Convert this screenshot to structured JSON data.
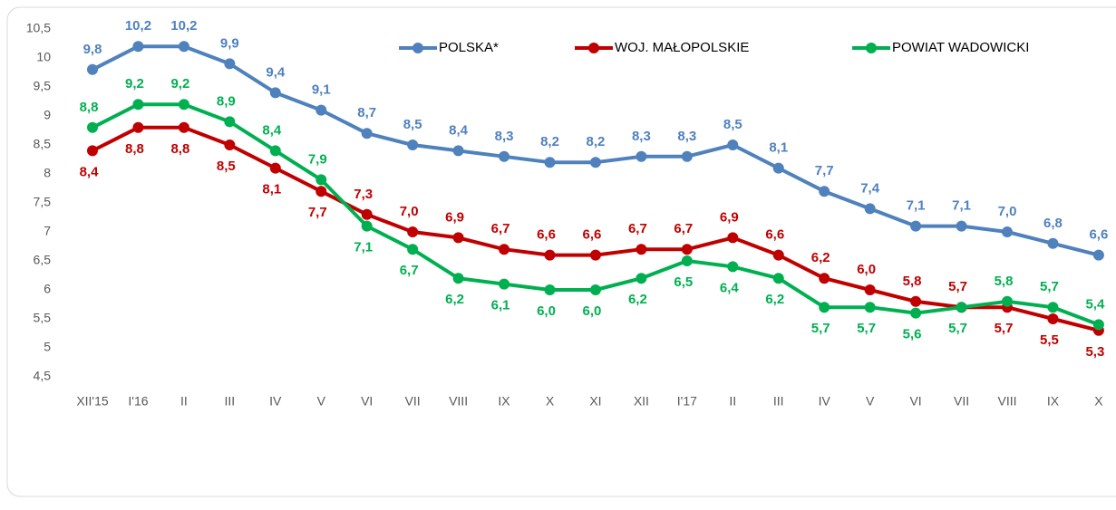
{
  "chart_data": {
    "type": "line",
    "categories": [
      "XII'15",
      "I'16",
      "II",
      "III",
      "IV",
      "V",
      "VI",
      "VII",
      "VIII",
      "IX",
      "X",
      "XI",
      "XII",
      "I'17",
      "II",
      "III",
      "IV",
      "V",
      "VI",
      "VII",
      "VIII",
      "IX",
      "X"
    ],
    "series": [
      {
        "name": "POLSKA*",
        "color": "#4f81bd",
        "values": [
          9.8,
          10.2,
          10.2,
          9.9,
          9.4,
          9.1,
          8.7,
          8.5,
          8.4,
          8.3,
          8.2,
          8.2,
          8.3,
          8.3,
          8.5,
          8.1,
          7.7,
          7.4,
          7.1,
          7.1,
          7.0,
          6.8,
          6.6
        ],
        "value_labels": [
          "9,8",
          "10,2",
          "10,2",
          "9,9",
          "9,4",
          "9,1",
          "8,7",
          "8,5",
          "8,4",
          "8,3",
          "8,2",
          "8,2",
          "8,3",
          "8,3",
          "8,5",
          "8,1",
          "7,7",
          "7,4",
          "7,1",
          "7,1",
          "7,0",
          "6,8",
          "6,6"
        ]
      },
      {
        "name": "WOJ. MAŁOPOLSKIE",
        "color": "#c00000",
        "values": [
          8.4,
          8.8,
          8.8,
          8.5,
          8.1,
          7.7,
          7.3,
          7.0,
          6.9,
          6.7,
          6.6,
          6.6,
          6.7,
          6.7,
          6.9,
          6.6,
          6.2,
          6.0,
          5.8,
          5.7,
          5.7,
          5.5,
          5.3
        ],
        "value_labels": [
          "8,4",
          "8,8",
          "8,8",
          "8,5",
          "8,1",
          "7,7",
          "7,3",
          "7,0",
          "6,9",
          "6,7",
          "6,6",
          "6,6",
          "6,7",
          "6,7",
          "6,9",
          "6,6",
          "6,2",
          "6,0",
          "5,8",
          "5,7",
          "5,7",
          "5,5",
          "5,3"
        ]
      },
      {
        "name": "POWIAT WADOWICKI",
        "color": "#00b050",
        "values": [
          8.8,
          9.2,
          9.2,
          8.9,
          8.4,
          7.9,
          7.1,
          6.7,
          6.2,
          6.1,
          6.0,
          6.0,
          6.2,
          6.5,
          6.4,
          6.2,
          5.7,
          5.7,
          5.6,
          5.7,
          5.8,
          5.7,
          5.4
        ],
        "value_labels": [
          "8,8",
          "9,2",
          "9,2",
          "8,9",
          "8,4",
          "7,9",
          "7,1",
          "6,7",
          "6,2",
          "6,1",
          "6,0",
          "6,0",
          "6,2",
          "6,5",
          "6,4",
          "6,2",
          "5,7",
          "5,7",
          "5,6",
          "5,7",
          "5,8",
          "5,7",
          "5,4"
        ]
      }
    ],
    "ylim": [
      4.5,
      10.5
    ],
    "yticks": [
      {
        "value": 4.5,
        "label": "4,5"
      },
      5,
      {
        "value": 5.5,
        "label": "5,5"
      },
      6,
      {
        "value": 6.5,
        "label": "6,5"
      },
      7,
      {
        "value": 7.5,
        "label": "7,5"
      },
      8,
      {
        "value": 8.5,
        "label": "8,5"
      },
      9,
      {
        "value": 9.5,
        "label": "9,5"
      },
      10,
      {
        "value": 10.5,
        "label": "10,5"
      }
    ],
    "legend": "top"
  }
}
